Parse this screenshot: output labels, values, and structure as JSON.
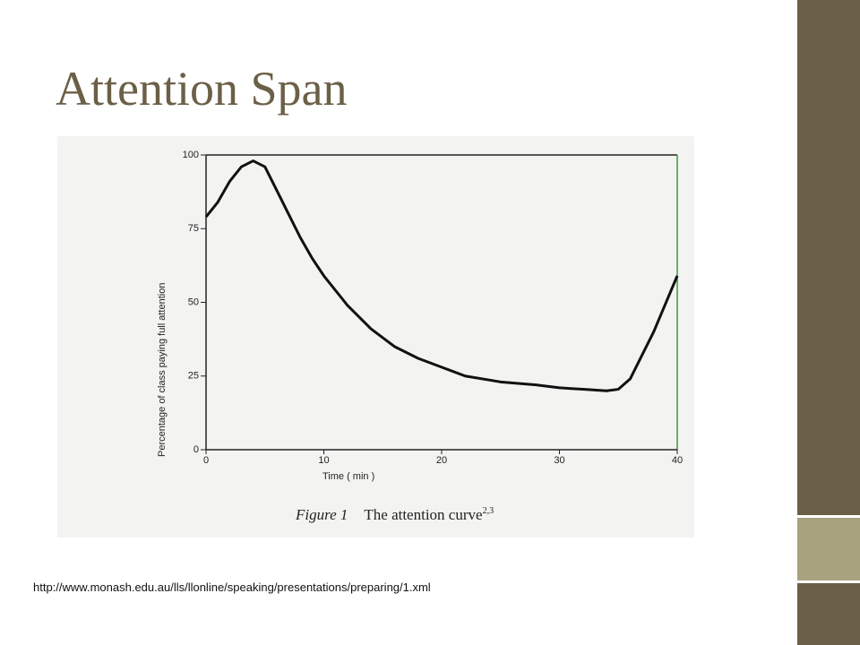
{
  "slide": {
    "title": "Attention Span",
    "source_url": "http://www.monash.edu.au/lls/llonline/speaking/presentations/preparing/1.xml"
  },
  "chart_data": {
    "type": "line",
    "caption_label": "Figure 1",
    "caption": "The attention curve",
    "caption_ref": "2,3",
    "x_label": "Time ( min )",
    "y_label": "Percentage of class paying full attention",
    "x": [
      0,
      1,
      2,
      3,
      4,
      5,
      6,
      7,
      8,
      9,
      10,
      12,
      14,
      16,
      18,
      20,
      22,
      25,
      28,
      30,
      32,
      34,
      35,
      36,
      38,
      40
    ],
    "series": [
      {
        "color": "#111111",
        "values": [
          79,
          84,
          91,
          96,
          98,
          96,
          88,
          80,
          72,
          65,
          59,
          49,
          41,
          35,
          31,
          28,
          25,
          23,
          22,
          21,
          20.5,
          20,
          20.5,
          24,
          40,
          59
        ]
      }
    ],
    "xlim": [
      0,
      40
    ],
    "ylim": [
      0,
      100
    ],
    "xticks": [
      0,
      10,
      20,
      30,
      40
    ],
    "yticks": [
      0,
      25,
      50,
      75,
      100
    ]
  }
}
